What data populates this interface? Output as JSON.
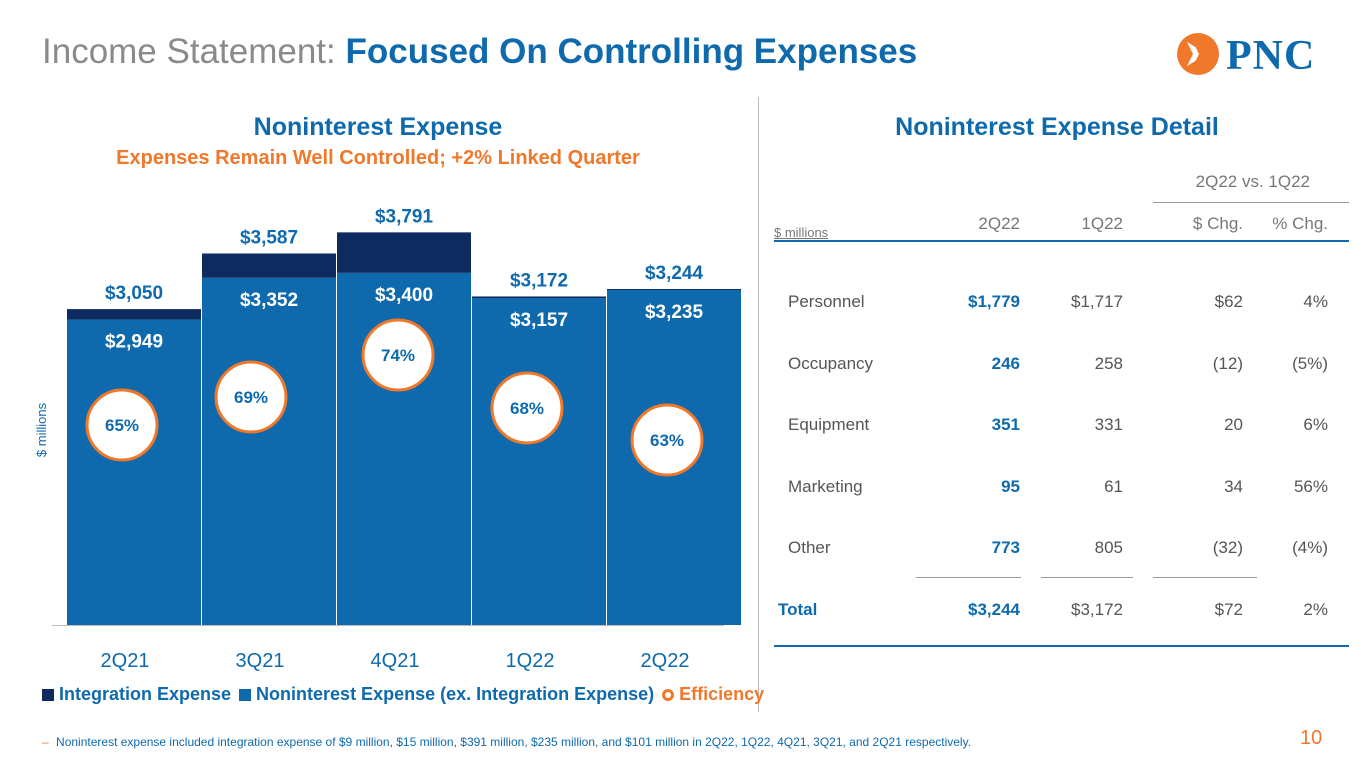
{
  "header": {
    "title_light": "Income Statement:",
    "title_strong": "Focused On Controlling Expenses",
    "logo_text": "PNC"
  },
  "chart_data": {
    "type": "bar",
    "stacked": true,
    "title": "Noninterest Expense",
    "subtitle": "Expenses Remain Well Controlled; +2% Linked Quarter",
    "ylabel": "$ millions",
    "categories": [
      "2Q21",
      "3Q21",
      "4Q21",
      "1Q22",
      "2Q22"
    ],
    "series": [
      {
        "name": "Noninterest Expense (ex. Integration Expense)",
        "values": [
          2949,
          3352,
          3400,
          3157,
          3235
        ],
        "labels": [
          "$2,949",
          "$3,352",
          "$3,400",
          "$3,157",
          "$3,235"
        ],
        "color": "#0e6aad"
      },
      {
        "name": "Integration Expense",
        "values": [
          101,
          235,
          391,
          15,
          9
        ],
        "color": "#0d2b5e"
      }
    ],
    "totals": [
      "$3,050",
      "$3,587",
      "$3,791",
      "$3,172",
      "$3,244"
    ],
    "total_values": [
      3050,
      3587,
      3791,
      3172,
      3244
    ],
    "efficiency": {
      "name": "Efficiency",
      "values": [
        "65%",
        "69%",
        "74%",
        "68%",
        "63%"
      ],
      "color": "#f0782a"
    },
    "ylim": [
      0,
      4200
    ],
    "legend": [
      "Integration Expense",
      "Noninterest Expense (ex. Integration Expense)",
      "Efficiency"
    ],
    "legend_position": "bottom"
  },
  "detail_table": {
    "title": "Noninterest Expense Detail",
    "group_header": "2Q22 vs. 1Q22",
    "unit_label": "$ millions",
    "columns": [
      "2Q22",
      "1Q22",
      "$ Chg.",
      "% Chg."
    ],
    "rows": [
      {
        "label": "Personnel",
        "cells": [
          "$1,779",
          "$1,717",
          "$62",
          "4%"
        ]
      },
      {
        "label": "Occupancy",
        "cells": [
          "246",
          "258",
          "(12)",
          "(5%)"
        ]
      },
      {
        "label": "Equipment",
        "cells": [
          "351",
          "331",
          "20",
          "6%"
        ]
      },
      {
        "label": "Marketing",
        "cells": [
          "95",
          "61",
          "34",
          "56%"
        ]
      },
      {
        "label": "Other",
        "cells": [
          "773",
          "805",
          "(32)",
          "(4%)"
        ]
      }
    ],
    "total": {
      "label": "Total",
      "cells": [
        "$3,244",
        "$3,172",
        "$72",
        "2%"
      ]
    }
  },
  "footnote": {
    "text": "Noninterest expense included integration expense of $9 million, $15 million, $391 million, $235 million, and $101 million in 2Q22, 1Q22, 4Q21, 3Q21, and 2Q21 respectively."
  },
  "page_number": "10",
  "colors": {
    "primary": "#0e6aad",
    "dark": "#0d2b5e",
    "accent": "#f0782a"
  }
}
